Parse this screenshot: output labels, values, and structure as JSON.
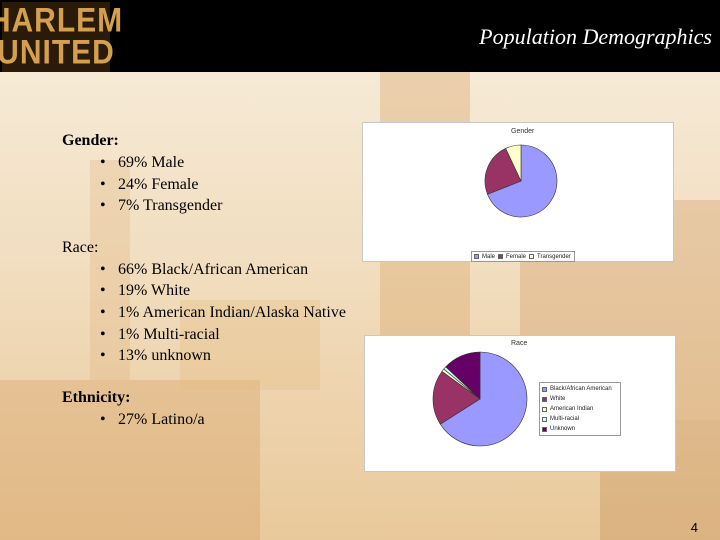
{
  "logo": {
    "line1": "HARLEM",
    "line2": "UNITED"
  },
  "title": "Population Demographics",
  "gender": {
    "heading": "Gender:",
    "items": [
      "69% Male",
      "24% Female",
      "7% Transgender"
    ]
  },
  "race": {
    "heading": "Race:",
    "items": [
      "66% Black/African American",
      "19% White",
      "1% American Indian/Alaska Native",
      "1% Multi-racial",
      "13% unknown"
    ]
  },
  "ethnicity": {
    "heading": "Ethnicity:",
    "items": [
      "27% Latino/a"
    ]
  },
  "bullet": "•",
  "page_number": "4",
  "chart_data": [
    {
      "type": "pie",
      "title": "Gender",
      "categories": [
        "Male",
        "Female",
        "Transgender"
      ],
      "legend_labels": [
        "Male",
        "Female",
        "Transgender"
      ],
      "values": [
        69,
        24,
        7
      ],
      "colors": [
        "#9999ff",
        "#993366",
        "#ffffcc"
      ],
      "legend_position": "bottom"
    },
    {
      "type": "pie",
      "title": "Race",
      "categories": [
        "Black/African American",
        "White",
        "American Indian",
        "Multi-racial",
        "Unknown"
      ],
      "values": [
        66,
        19,
        1,
        1,
        13
      ],
      "colors": [
        "#9999ff",
        "#993366",
        "#ffffcc",
        "#ccffff",
        "#660066"
      ],
      "legend_position": "right"
    }
  ]
}
